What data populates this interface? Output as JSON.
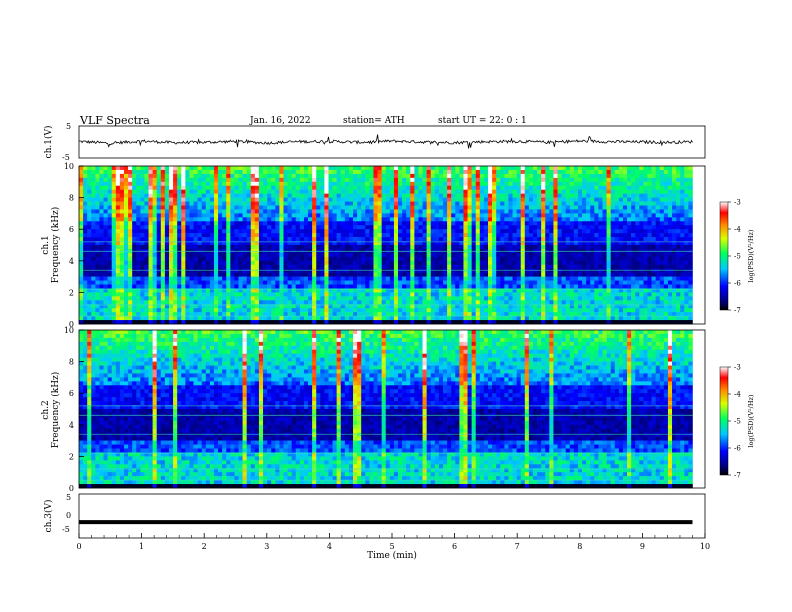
{
  "header": {
    "title": "VLF  Spectra",
    "date": "Jan. 16, 2022",
    "station": "station= ATH",
    "start_ut": "start  UT  =    22: 0   : 1"
  },
  "colors": {
    "axis": "#000000",
    "trace": "#000000",
    "background_panel": "#ffffff"
  },
  "chart_data": [
    {
      "type": "line",
      "panel": "ch1-waveform",
      "ylabel": "ch.1(V)",
      "ylim": [
        -5,
        5
      ],
      "xlim": [
        0,
        10
      ],
      "yticks": [
        "5",
        "-5"
      ],
      "x": [
        0,
        0.5,
        1,
        1.5,
        2,
        2.5,
        3,
        3.5,
        4,
        4.5,
        5,
        5.5,
        6,
        6.5,
        7,
        7.5,
        8,
        8.5,
        9,
        9.5,
        9.8
      ],
      "values": [
        0.2,
        -0.4,
        0.3,
        -0.2,
        -0.1,
        0.2,
        -0.3,
        0.1,
        0.2,
        -0.1,
        0.3,
        0.0,
        -0.2,
        0.1,
        0.2,
        -0.1,
        0.3,
        0.1,
        0.0,
        -0.1,
        0.1
      ],
      "description_level": "noisy trace centered near 0 V"
    },
    {
      "type": "heatmap",
      "panel": "ch1-spectrogram",
      "ylabel": "ch.1\nFrequency (kHz)",
      "ylabel_line1": "ch.1",
      "ylabel_line2": "Frequency  (kHz)",
      "xlim": [
        0,
        10
      ],
      "ylim": [
        0,
        10
      ],
      "yticks": [
        "0",
        "2",
        "4",
        "6",
        "8",
        "10"
      ],
      "data_end_min": 9.8,
      "colorbar": {
        "label": "log(PSD)(V²/Hz)",
        "range": [
          -7,
          -3
        ],
        "ticks": [
          "-3",
          "-4",
          "-5",
          "-6",
          "-7"
        ]
      },
      "bands_khz": {
        "quiet_lower": [
          0.3,
          2.3
        ],
        "dark_mid": [
          3.0,
          6.4
        ],
        "sferic_upper": [
          6.4,
          10
        ]
      }
    },
    {
      "type": "heatmap",
      "panel": "ch2-spectrogram",
      "ylabel_line1": "ch.2",
      "ylabel_line2": "Frequency  (kHz)",
      "xlim": [
        0,
        10
      ],
      "ylim": [
        0,
        10
      ],
      "yticks": [
        "0",
        "2",
        "4",
        "6",
        "8",
        "10"
      ],
      "data_end_min": 9.8,
      "colorbar": {
        "label": "log(PSD)(V²/Hz)",
        "range": [
          -7,
          -3
        ],
        "ticks": [
          "-3",
          "-4",
          "-5",
          "-6",
          "-7"
        ]
      }
    },
    {
      "type": "line",
      "panel": "ch3-waveform",
      "ylabel": "ch.3(V)",
      "ylim": [
        -5,
        5
      ],
      "xlim": [
        0,
        10
      ],
      "yticks": [
        "5",
        "0",
        "-5"
      ],
      "x": [
        0,
        9.8
      ],
      "values": [
        -1.8,
        -1.8
      ],
      "xlabel": "Time  (min)",
      "xticks": [
        "0",
        "1",
        "2",
        "3",
        "4",
        "5",
        "6",
        "7",
        "8",
        "9",
        "10"
      ]
    }
  ]
}
